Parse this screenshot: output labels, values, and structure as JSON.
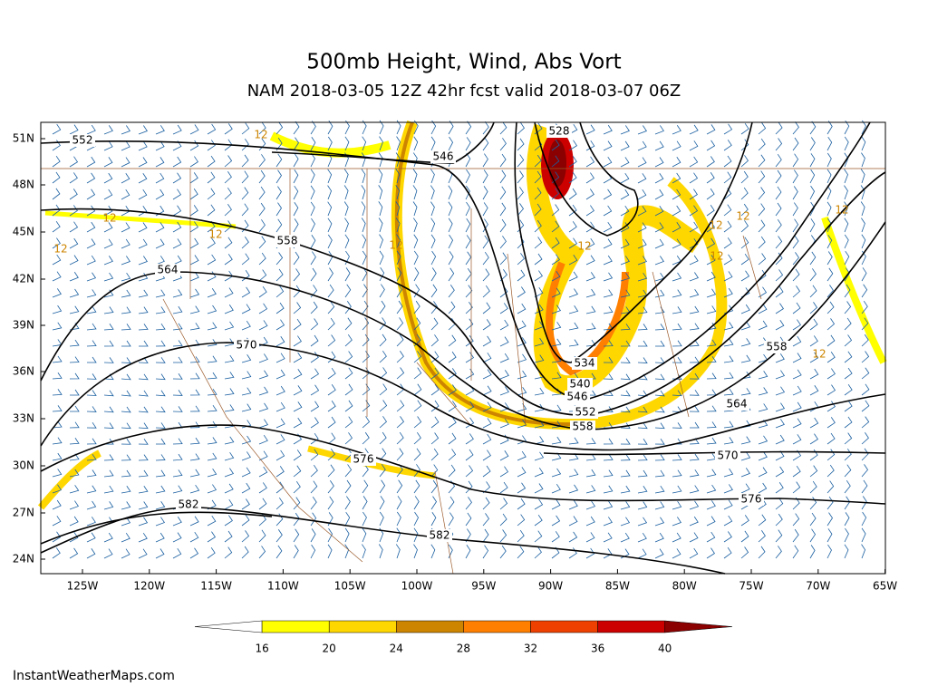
{
  "header": {
    "title": "500mb Height, Wind, Abs Vort",
    "subtitle": "NAM 2018-03-05 12Z 42hr fcst valid 2018-03-07 06Z"
  },
  "map": {
    "lat_labels": [
      "51N",
      "48N",
      "45N",
      "42N",
      "39N",
      "36N",
      "33N",
      "30N",
      "27N",
      "24N"
    ],
    "lon_labels": [
      "125W",
      "120W",
      "115W",
      "110W",
      "105W",
      "100W",
      "95W",
      "90W",
      "85W",
      "80W",
      "75W",
      "70W",
      "65W"
    ],
    "contour_labels": [
      "552",
      "546",
      "528",
      "558",
      "564",
      "570",
      "534",
      "540",
      "546",
      "552",
      "558",
      "558",
      "564",
      "570",
      "576",
      "576",
      "582",
      "582",
      "12",
      "12",
      "12",
      "12",
      "12",
      "12",
      "12",
      "12",
      "12",
      "12",
      "12"
    ]
  },
  "colorbar": {
    "ticks": [
      16,
      20,
      24,
      28,
      32,
      36,
      40
    ],
    "colors": [
      "#ffffff",
      "#ffff00",
      "#ffd700",
      "#cd8500",
      "#ff7f00",
      "#ee4000",
      "#cd0000",
      "#8b0000"
    ]
  },
  "footer": {
    "credit": "InstantWeatherMaps.com"
  }
}
